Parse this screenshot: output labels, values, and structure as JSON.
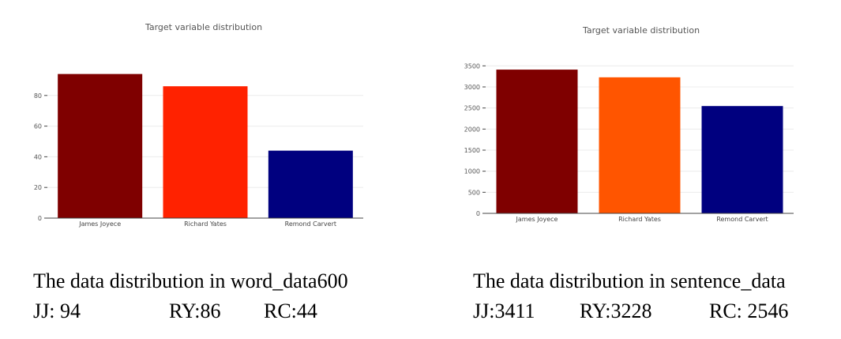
{
  "chart_data": [
    {
      "type": "bar",
      "title": "Target variable distribution",
      "categories": [
        "James Joyece",
        "Richard Yates",
        "Remond Carvert"
      ],
      "values": [
        94,
        86,
        44
      ],
      "colors": [
        "#7f0000",
        "#ff2200",
        "#00007f"
      ],
      "yticks": [
        0,
        20,
        40,
        60,
        80
      ],
      "ylim": [
        0,
        100
      ],
      "grid": true
    },
    {
      "type": "bar",
      "title": "Target variable distribution",
      "categories": [
        "James Joyece",
        "Richard Yates",
        "Remond Carvert"
      ],
      "values": [
        3411,
        3228,
        2546
      ],
      "colors": [
        "#7f0000",
        "#ff5500",
        "#00007f"
      ],
      "yticks": [
        0,
        500,
        1000,
        1500,
        2000,
        2500,
        3000,
        3500
      ],
      "ylim": [
        0,
        3600
      ],
      "grid": true
    }
  ],
  "captions": {
    "left": {
      "title": "The data distribution in word_data600",
      "jj": "JJ: 94",
      "ry": "RY:86",
      "rc": "RC:44"
    },
    "right": {
      "title": "The data distribution in sentence_data",
      "jj": "JJ:3411",
      "ry": "RY:3228",
      "rc": "RC: 2546"
    }
  }
}
